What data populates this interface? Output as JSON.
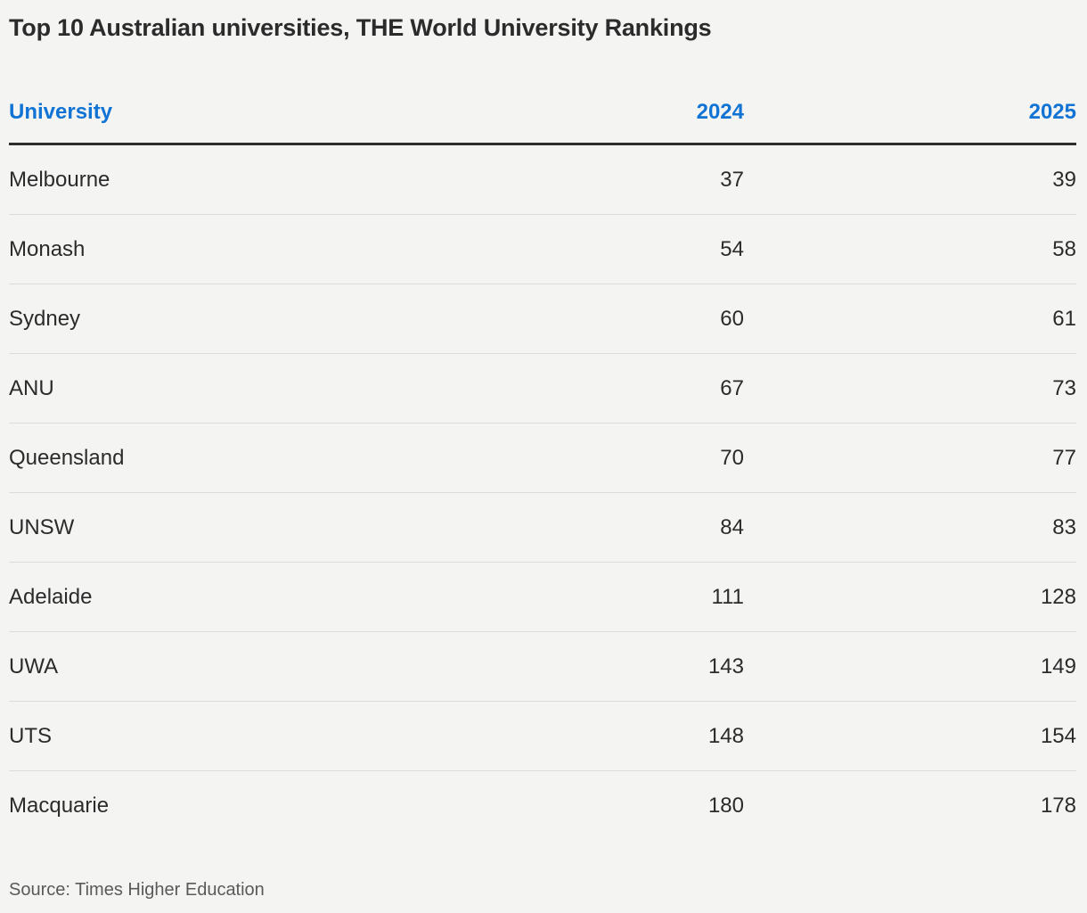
{
  "title": "Top 10 Australian universities, THE World University Rankings",
  "source": "Source: Times Higher Education",
  "colors": {
    "background": "#f4f4f3",
    "accent_blue": "#1173d4",
    "text_dark": "#2b2b2b",
    "header_rule": "#2d2d2d",
    "row_divider": "#dcdcdb",
    "source_gray": "#5a5a5a"
  },
  "chart_data": {
    "type": "table",
    "title": "Top 10 Australian universities, THE World University Rankings",
    "columns": [
      "University",
      "2024",
      "2025"
    ],
    "rows": [
      {
        "university": "Melbourne",
        "y2024": "37",
        "y2025": "39"
      },
      {
        "university": "Monash",
        "y2024": "54",
        "y2025": "58"
      },
      {
        "university": "Sydney",
        "y2024": "60",
        "y2025": "61"
      },
      {
        "university": "ANU",
        "y2024": "67",
        "y2025": "73"
      },
      {
        "university": "Queensland",
        "y2024": "70",
        "y2025": "77"
      },
      {
        "university": "UNSW",
        "y2024": "84",
        "y2025": "83"
      },
      {
        "university": "Adelaide",
        "y2024": "111",
        "y2025": "128"
      },
      {
        "university": "UWA",
        "y2024": "143",
        "y2025": "149"
      },
      {
        "university": "UTS",
        "y2024": "148",
        "y2025": "154"
      },
      {
        "university": "Macquarie",
        "y2024": "180",
        "y2025": "178"
      }
    ],
    "source_note": "Source: Times Higher Education",
    "layout": {
      "numeric_columns_right_aligned": true,
      "header_color": "#1173d4"
    }
  }
}
